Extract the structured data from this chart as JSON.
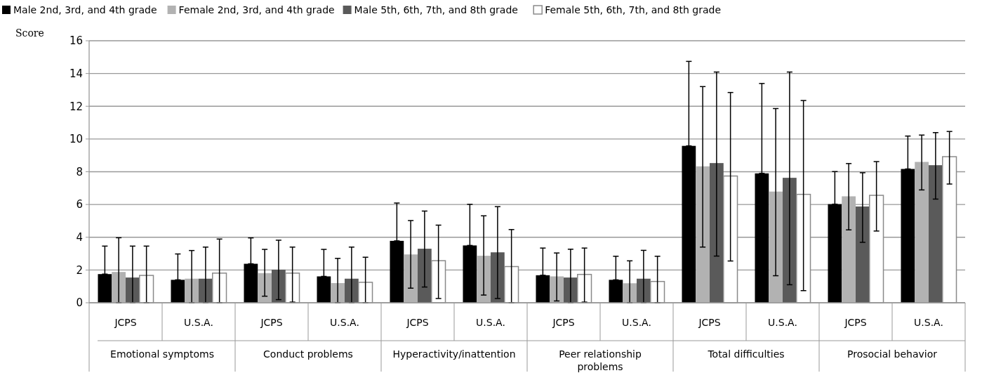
{
  "chart_data": {
    "type": "bar",
    "ylabel": "Score",
    "categories": [
      "JCPS",
      "U.S.A.",
      "JCPS",
      "U.S.A.",
      "JCPS",
      "U.S.A.",
      "JCPS",
      "U.S.A.",
      "JCPS",
      "U.S.A.",
      "JCPS",
      "U.S.A."
    ],
    "annotations": [
      "Emotional symptoms",
      "Conduct problems",
      "Hyperactivity/inattention",
      "Peer relationship problems",
      "Total difficulties",
      "Prosocial behavior"
    ],
    "ylim": [
      0,
      16
    ],
    "yticks": [
      0,
      2,
      4,
      6,
      8,
      10,
      12,
      14,
      16
    ],
    "grid": "y",
    "legend": "top",
    "series": [
      {
        "name": "Male 2nd, 3rd, and 4th grade",
        "color": "#000000",
        "values": [
          1.75,
          1.4,
          2.38,
          1.61,
          3.78,
          3.5,
          1.68,
          1.4,
          9.58,
          7.9,
          6.02,
          8.17
        ],
        "errors": [
          [
            1.75,
            3.46
          ],
          [
            1.4,
            2.98
          ],
          [
            2.38,
            3.96
          ],
          [
            1.61,
            3.26
          ],
          [
            3.78,
            6.09
          ],
          [
            3.5,
            6.01
          ],
          [
            1.68,
            3.34
          ],
          [
            1.4,
            2.84
          ],
          [
            9.58,
            14.74
          ],
          [
            7.9,
            13.39
          ],
          [
            6.02,
            8.01
          ],
          [
            8.17,
            10.18
          ]
        ]
      },
      {
        "name": "Female 2nd, 3rd, and 4th grade",
        "color": "#b2b2b2",
        "values": [
          1.88,
          1.47,
          1.81,
          1.2,
          2.95,
          2.87,
          1.61,
          1.19,
          8.33,
          6.79,
          6.5,
          8.6
        ],
        "errors": [
          [
            0,
            3.97
          ],
          [
            0,
            3.19
          ],
          [
            0.4,
            3.26
          ],
          [
            0,
            2.71
          ],
          [
            0.89,
            5.02
          ],
          [
            0.47,
            5.31
          ],
          [
            0.11,
            3.04
          ],
          [
            0,
            2.56
          ],
          [
            3.4,
            13.2
          ],
          [
            1.65,
            11.86
          ],
          [
            4.45,
            8.5
          ],
          [
            6.89,
            10.24
          ]
        ]
      },
      {
        "name": "Male 5th, 6th, 7th, and 8th grade",
        "color": "#5a5a5a",
        "values": [
          1.54,
          1.47,
          2.02,
          1.47,
          3.3,
          3.08,
          1.54,
          1.47,
          8.53,
          7.63,
          5.88,
          8.4
        ],
        "errors": [
          [
            0,
            3.46
          ],
          [
            0,
            3.4
          ],
          [
            0.19,
            3.82
          ],
          [
            0,
            3.4
          ],
          [
            0.96,
            5.6
          ],
          [
            0.26,
            5.87
          ],
          [
            0,
            3.27
          ],
          [
            0,
            3.2
          ],
          [
            2.85,
            14.09
          ],
          [
            1.1,
            14.09
          ],
          [
            3.69,
            7.94
          ],
          [
            6.33,
            10.39
          ]
        ]
      },
      {
        "name": "Female 5th, 6th, 7th, and 8th grade",
        "color": "#ffffff",
        "values": [
          1.67,
          1.81,
          1.81,
          1.25,
          2.57,
          2.21,
          1.73,
          1.3,
          7.74,
          6.62,
          6.56,
          8.92
        ],
        "errors": [
          [
            0,
            3.46
          ],
          [
            0,
            3.89
          ],
          [
            0.04,
            3.4
          ],
          [
            0,
            2.78
          ],
          [
            0.26,
            4.74
          ],
          [
            0,
            4.47
          ],
          [
            0.04,
            3.34
          ],
          [
            0,
            2.84
          ],
          [
            2.55,
            12.84
          ],
          [
            0.74,
            12.35
          ],
          [
            4.38,
            8.62
          ],
          [
            7.25,
            10.46
          ]
        ]
      }
    ]
  }
}
